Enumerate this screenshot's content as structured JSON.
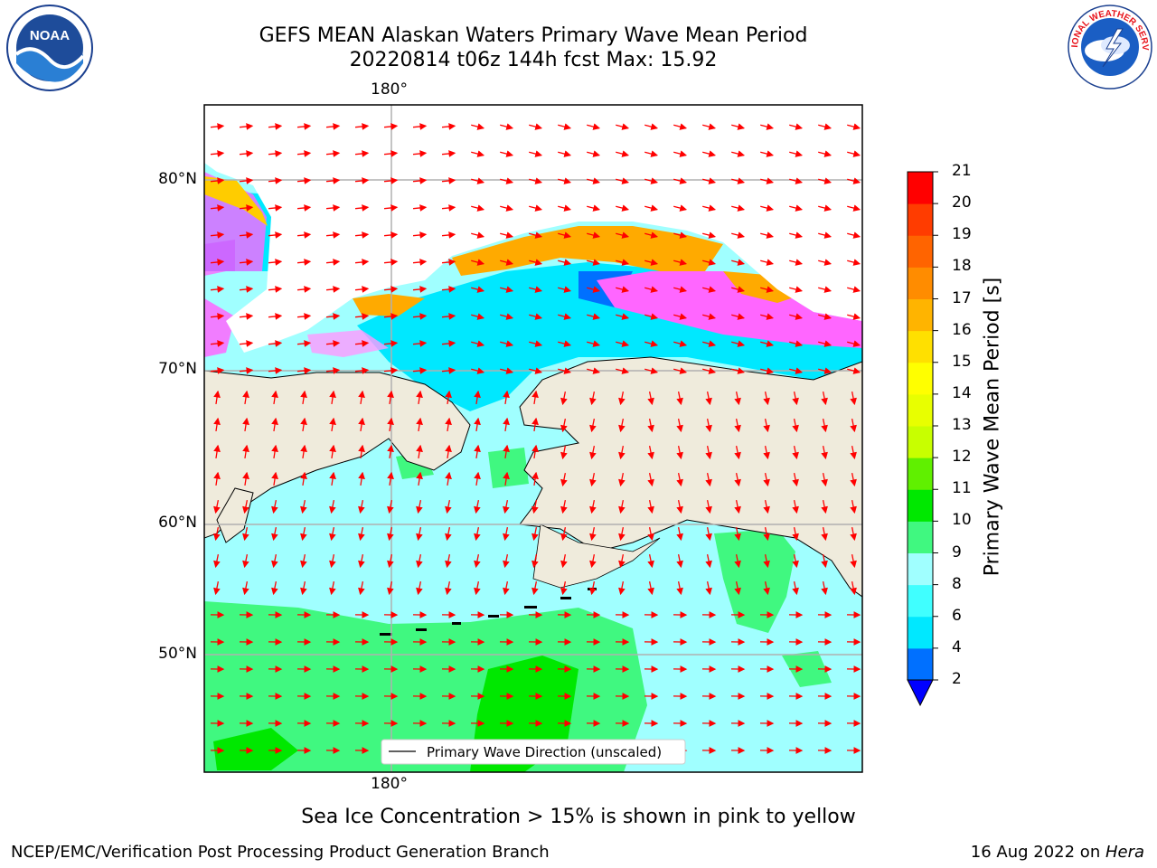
{
  "title": {
    "line1": "GEFS MEAN Alaskan Waters Primary Wave Mean Period",
    "line2": "20220814 t06z 144h fcst   Max: 15.92"
  },
  "map": {
    "lon_label_top": "180°",
    "lon_label_bottom": "180°",
    "lat_labels": [
      "80°N",
      "70°N",
      "60°N",
      "50°N"
    ],
    "legend_label": "Primary Wave Direction (unscaled)",
    "land_color": "#efebdc",
    "arrow_color": "#ff0000"
  },
  "colorbar": {
    "label": "Primary Wave Mean Period [s]",
    "ticks": [
      "2",
      "4",
      "6",
      "8",
      "9",
      "10",
      "11",
      "12",
      "13",
      "14",
      "15",
      "16",
      "17",
      "18",
      "19",
      "20",
      "21"
    ],
    "colors": [
      "#0070ff",
      "#00e8ff",
      "#40ffff",
      "#a0ffff",
      "#40f880",
      "#00e800",
      "#60f000",
      "#c8ff00",
      "#e8ff00",
      "#ffff00",
      "#ffe000",
      "#ffb400",
      "#ff8c00",
      "#ff6400",
      "#ff3c00",
      "#ff0000"
    ],
    "extend_color": "#0000ff"
  },
  "caption": "Sea Ice Concentration > 15% is shown in pink to yellow",
  "footer": {
    "left": "NCEP/EMC/Verification Post Processing Product Generation Branch",
    "date": "16 Aug 2022 on ",
    "machine": "Hera"
  },
  "logos": {
    "noaa_text": "NOAA",
    "nws_text": "NATIONAL WEATHER SERVICE"
  }
}
